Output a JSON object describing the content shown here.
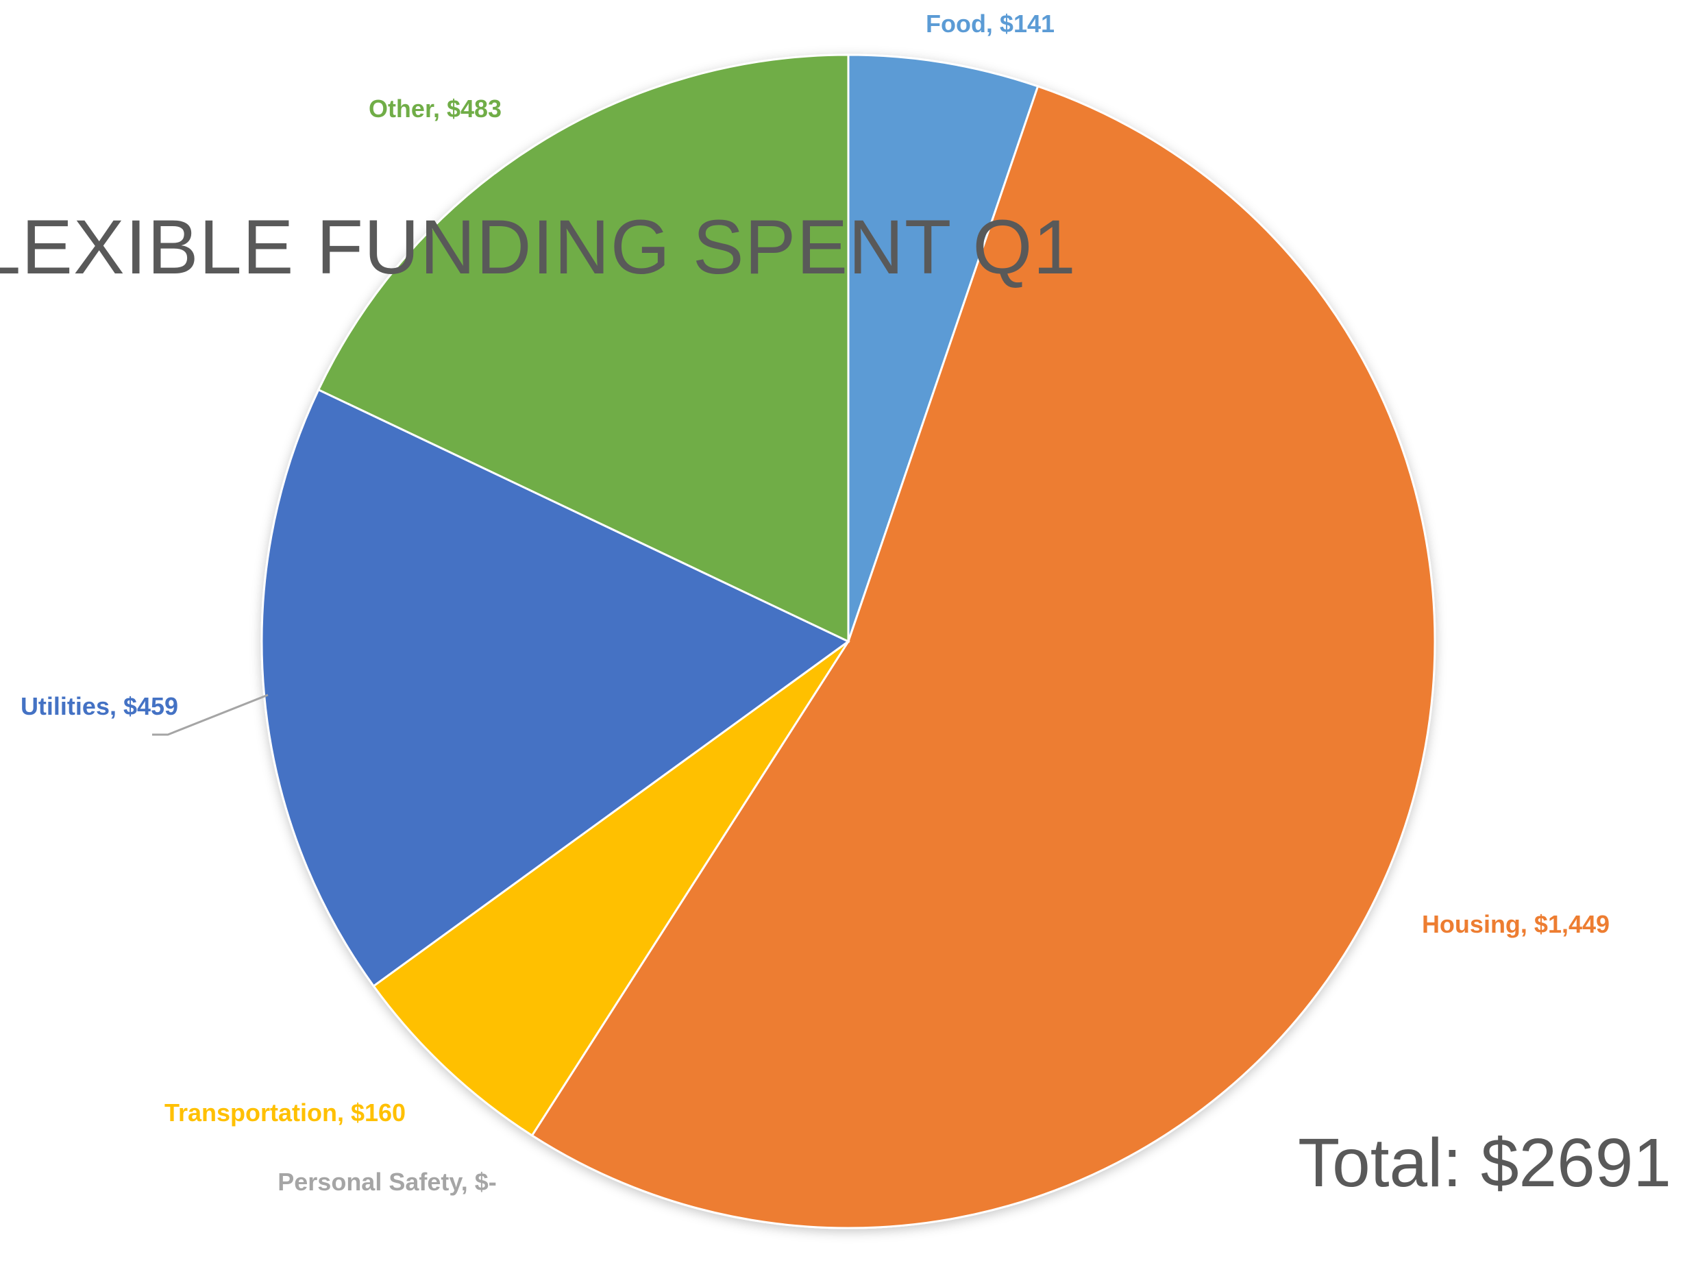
{
  "chart_data": {
    "type": "pie",
    "title": "LEXIBLE FUNDING SPENT Q1",
    "total_text": "Total: $2691",
    "slices": [
      {
        "label": "Food",
        "value": 141,
        "value_label": "$141",
        "color": "#5B9BD5"
      },
      {
        "label": "Housing",
        "value": 1449,
        "value_label": "$1,449",
        "color": "#ED7D31"
      },
      {
        "label": "Personal Safety",
        "value": 0,
        "value_label": "$-",
        "color": "#A5A5A5"
      },
      {
        "label": "Transportation",
        "value": 160,
        "value_label": "$160",
        "color": "#FFC000"
      },
      {
        "label": "Utilities",
        "value": 459,
        "value_label": "$459",
        "color": "#4472C4"
      },
      {
        "label": "Other",
        "value": 483,
        "value_label": "$483",
        "color": "#70AD47"
      }
    ],
    "start_angle": "12 o'clock",
    "direction": "clockwise",
    "legend": "none"
  }
}
